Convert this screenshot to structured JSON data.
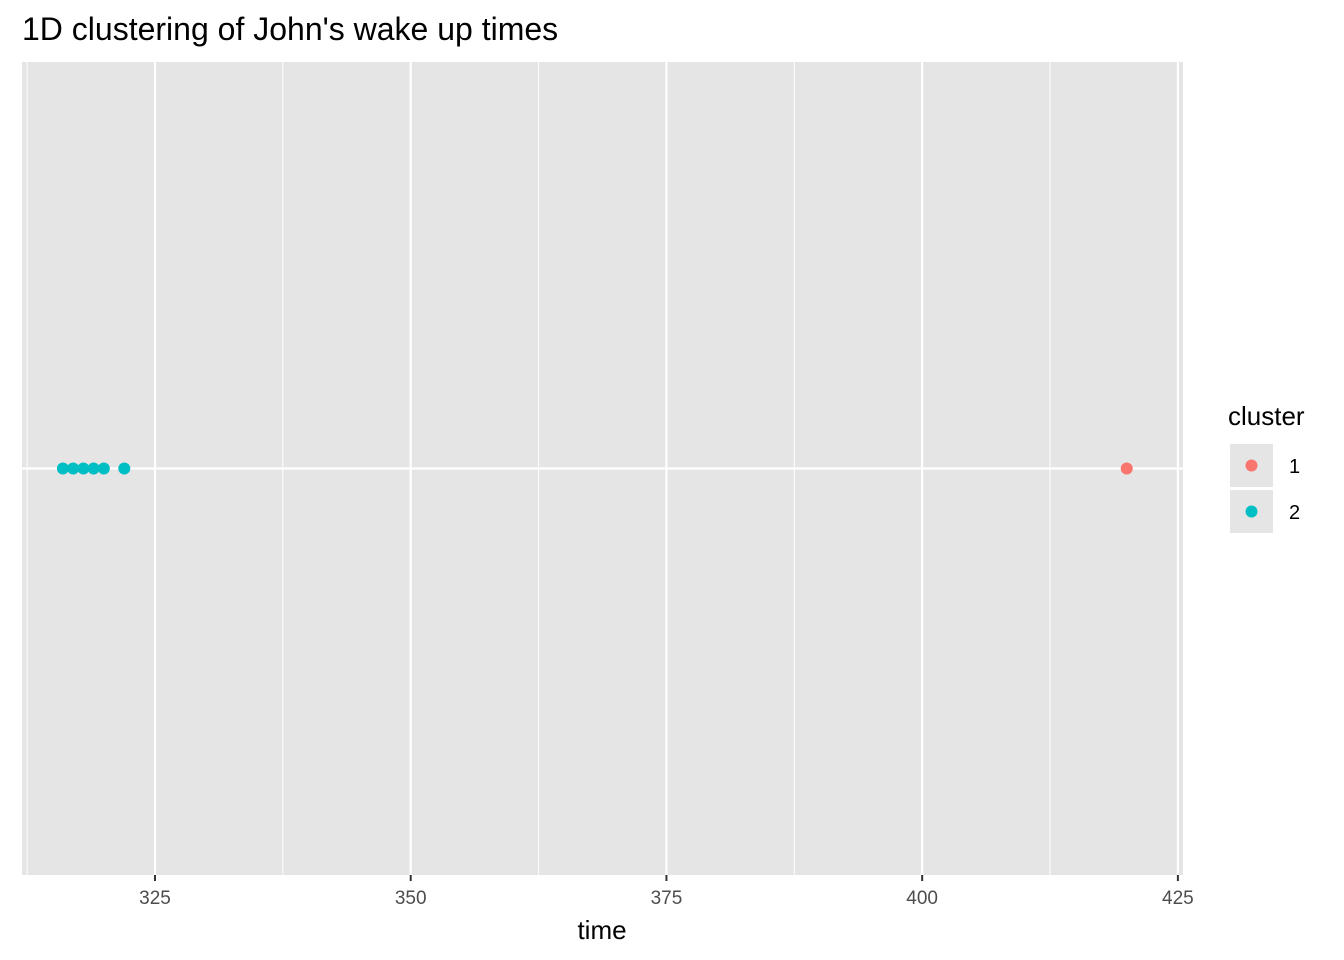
{
  "chart_data": {
    "type": "scatter",
    "title": "1D clustering of John's wake up times",
    "xlabel": "time",
    "ylabel": "",
    "xlim": [
      312,
      425.5
    ],
    "x_ticks": [
      325,
      350,
      375,
      400,
      425
    ],
    "x_tick_labels": [
      "325",
      "350",
      "375",
      "400",
      "425"
    ],
    "x_minor_ticks": [
      312.5,
      337.5,
      362.5,
      387.5,
      412.5
    ],
    "grid": true,
    "legend": {
      "title": "cluster",
      "position": "right",
      "entries": [
        {
          "label": "1",
          "color": "#F8766D"
        },
        {
          "label": "2",
          "color": "#00BFC4"
        }
      ]
    },
    "series": [
      {
        "name": "1",
        "color": "#F8766D",
        "x": [
          420
        ],
        "y": [
          0
        ]
      },
      {
        "name": "2",
        "color": "#00BFC4",
        "x": [
          316,
          317,
          318,
          319,
          320,
          322
        ],
        "y": [
          0,
          0,
          0,
          0,
          0,
          0
        ]
      }
    ]
  },
  "colors": {
    "panel_background": "#E5E5E5",
    "grid_major": "#FFFFFF",
    "tick_text": "#4D4D4D"
  }
}
